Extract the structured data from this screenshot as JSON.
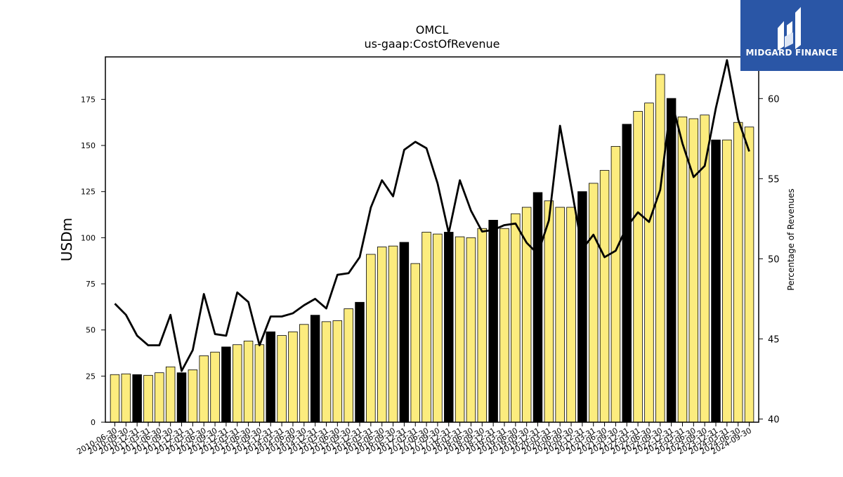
{
  "brand": {
    "name": "MIDGARD FINANCE",
    "bg_color": "#2a56a6",
    "icon": "midgard-logo-icon"
  },
  "chart_data": {
    "type": "bar",
    "title": "OMCL",
    "subtitle": "us-gaap:CostOfRevenue",
    "ylabel": "USDm",
    "y2label": "Percentage of Revenues",
    "ylim": [
      0,
      198
    ],
    "y2lim": [
      39.8,
      62.6
    ],
    "yticks": [
      0,
      25,
      50,
      75,
      100,
      125,
      150,
      175
    ],
    "y2ticks": [
      40,
      45,
      50,
      55,
      60
    ],
    "grid": false,
    "legend": "none",
    "colors": {
      "bar": "#fcec7e",
      "bar_q4": "#000000",
      "line": "#000000"
    },
    "categories": [
      "2010-06-30",
      "2010-09-30",
      "2010-12-31",
      "2011-03-31",
      "2011-06-30",
      "2011-09-30",
      "2011-12-31",
      "2012-03-31",
      "2012-06-30",
      "2012-09-30",
      "2012-12-31",
      "2013-03-31",
      "2013-06-30",
      "2013-09-30",
      "2013-12-31",
      "2014-03-31",
      "2014-06-30",
      "2014-09-30",
      "2014-12-31",
      "2015-03-31",
      "2015-06-30",
      "2015-09-30",
      "2015-12-31",
      "2016-03-31",
      "2016-06-30",
      "2016-09-30",
      "2016-12-31",
      "2017-03-31",
      "2017-06-30",
      "2017-09-30",
      "2017-12-31",
      "2018-03-31",
      "2018-06-30",
      "2018-09-30",
      "2018-12-31",
      "2019-03-31",
      "2019-06-30",
      "2019-09-30",
      "2019-12-31",
      "2020-03-31",
      "2020-06-30",
      "2020-09-30",
      "2020-12-31",
      "2021-03-31",
      "2021-06-30",
      "2021-09-30",
      "2021-12-31",
      "2022-03-31",
      "2022-06-30",
      "2022-09-30",
      "2022-12-31",
      "2023-03-31",
      "2023-06-30",
      "2023-09-30",
      "2023-12-31",
      "2024-03-31",
      "2024-06-30",
      "2024-09-30"
    ],
    "series": [
      {
        "type": "bar",
        "values": [
          25.8,
          26.2,
          25.8,
          25.4,
          26.8,
          30.0,
          26.8,
          28.4,
          36.0,
          38.0,
          40.8,
          42.0,
          44.0,
          42.0,
          49.0,
          47.0,
          49.0,
          53.0,
          58.0,
          54.5,
          55.0,
          61.5,
          65.0,
          91.0,
          95.0,
          95.5,
          97.5,
          86.0,
          103.0,
          102.0,
          103.0,
          100.5,
          100.0,
          105.0,
          109.5,
          105.0,
          113.0,
          116.5,
          124.5,
          120.0,
          116.5,
          116.5,
          125.0,
          129.5,
          136.5,
          149.5,
          161.5,
          168.5,
          173.0,
          188.5,
          175.5,
          165.5,
          164.5,
          166.5,
          153.0,
          153.0,
          162.5,
          160.0
        ],
        "q4": [
          false,
          false,
          true,
          false,
          false,
          false,
          true,
          false,
          false,
          false,
          true,
          false,
          false,
          false,
          true,
          false,
          false,
          false,
          true,
          false,
          false,
          false,
          true,
          false,
          false,
          false,
          true,
          false,
          false,
          false,
          true,
          false,
          false,
          false,
          true,
          false,
          false,
          false,
          true,
          false,
          false,
          false,
          true,
          false,
          false,
          false,
          true,
          false,
          false,
          false,
          true,
          false,
          false,
          false,
          true,
          false,
          false,
          false
        ]
      },
      {
        "type": "line",
        "axis": "right",
        "values": [
          47.2,
          46.5,
          45.2,
          44.6,
          44.6,
          46.5,
          43.0,
          44.3,
          47.8,
          45.3,
          45.2,
          47.9,
          47.3,
          44.6,
          46.4,
          46.4,
          46.6,
          47.1,
          47.5,
          46.9,
          49.0,
          49.1,
          50.1,
          53.2,
          54.9,
          53.9,
          56.8,
          57.3,
          56.9,
          54.7,
          51.6,
          54.9,
          53.0,
          51.7,
          51.8,
          52.1,
          52.2,
          51.0,
          50.3,
          52.4,
          58.3,
          54.5,
          50.6,
          51.5,
          50.1,
          50.5,
          52.0,
          52.9,
          52.3,
          54.3,
          59.9,
          57.2,
          55.1,
          55.8,
          59.4,
          62.4,
          58.7,
          56.7
        ]
      }
    ]
  }
}
